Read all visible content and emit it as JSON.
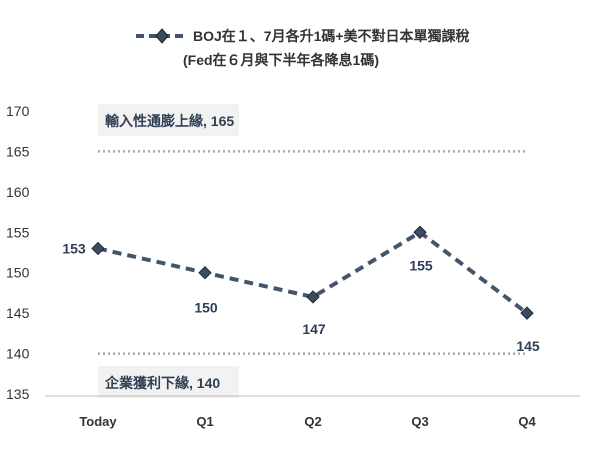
{
  "chart_data": {
    "type": "line",
    "categories": [
      "Today",
      "Q1",
      "Q2",
      "Q3",
      "Q4"
    ],
    "series": [
      {
        "name": "BOJ在１、7月各升1碼+美不對日本單獨課稅",
        "values": [
          153,
          150,
          147,
          155,
          145
        ],
        "color": "#44546a"
      }
    ],
    "legend": {
      "label": "BOJ在１、7月各升1碼+美不對日本單獨課稅",
      "sublabel": "(Fed在６月與下半年各降息1碼)",
      "position": "top"
    },
    "ylim": [
      135,
      170
    ],
    "yticks": [
      135,
      140,
      145,
      150,
      155,
      160,
      165,
      170
    ],
    "grid": false,
    "reference_lines": [
      {
        "value": 165,
        "label": "輸入性通膨上緣, 165"
      },
      {
        "value": 140,
        "label": "企業獲利下緣, 140"
      }
    ],
    "data_labels": [
      "153",
      "150",
      "147",
      "155",
      "145"
    ]
  }
}
